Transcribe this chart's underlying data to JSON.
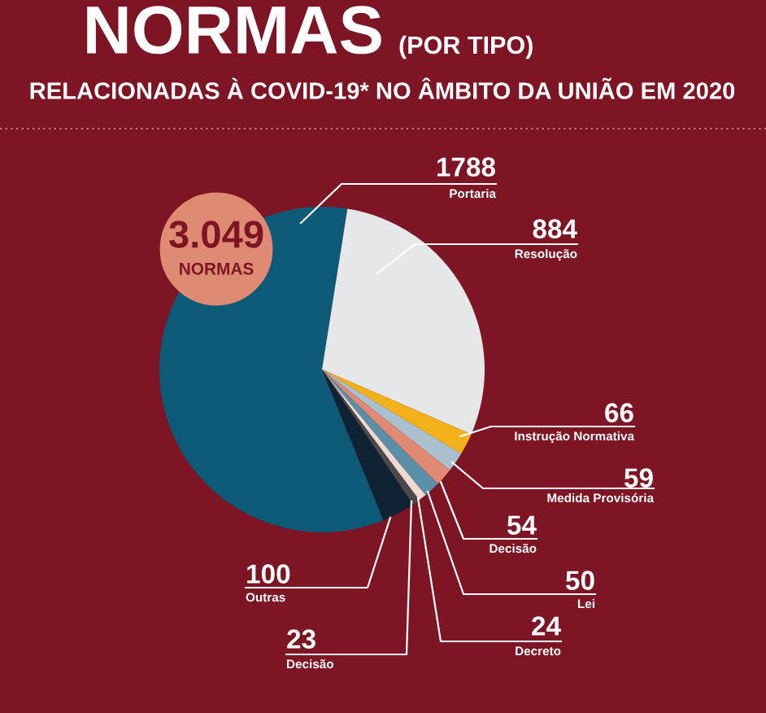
{
  "chart_data": {
    "type": "pie",
    "title": "NORMAS",
    "subtitle": "RELACIONADAS À COVID-19* NO ÂMBITO DA UNIÃO EM 2020",
    "categories": [
      "Portaria",
      "Resolução",
      "Instrução Normativa",
      "Medida Provisória",
      "Decisão",
      "Lei",
      "Decreto",
      "Decisão",
      "Outras"
    ],
    "values": [
      1788,
      884,
      66,
      59,
      54,
      50,
      24,
      23,
      100
    ],
    "colors": [
      "#0c5a78",
      "#e6e7e8",
      "#f5b11a",
      "#a9c1cf",
      "#e08a73",
      "#5a8fa8",
      "#f0d9d0",
      "#4a4a4a",
      "#0f2233"
    ],
    "data_labels": true,
    "legend": false,
    "annotations": [
      "(POR TIPO)",
      "3.049",
      "NORMAS"
    ]
  }
}
